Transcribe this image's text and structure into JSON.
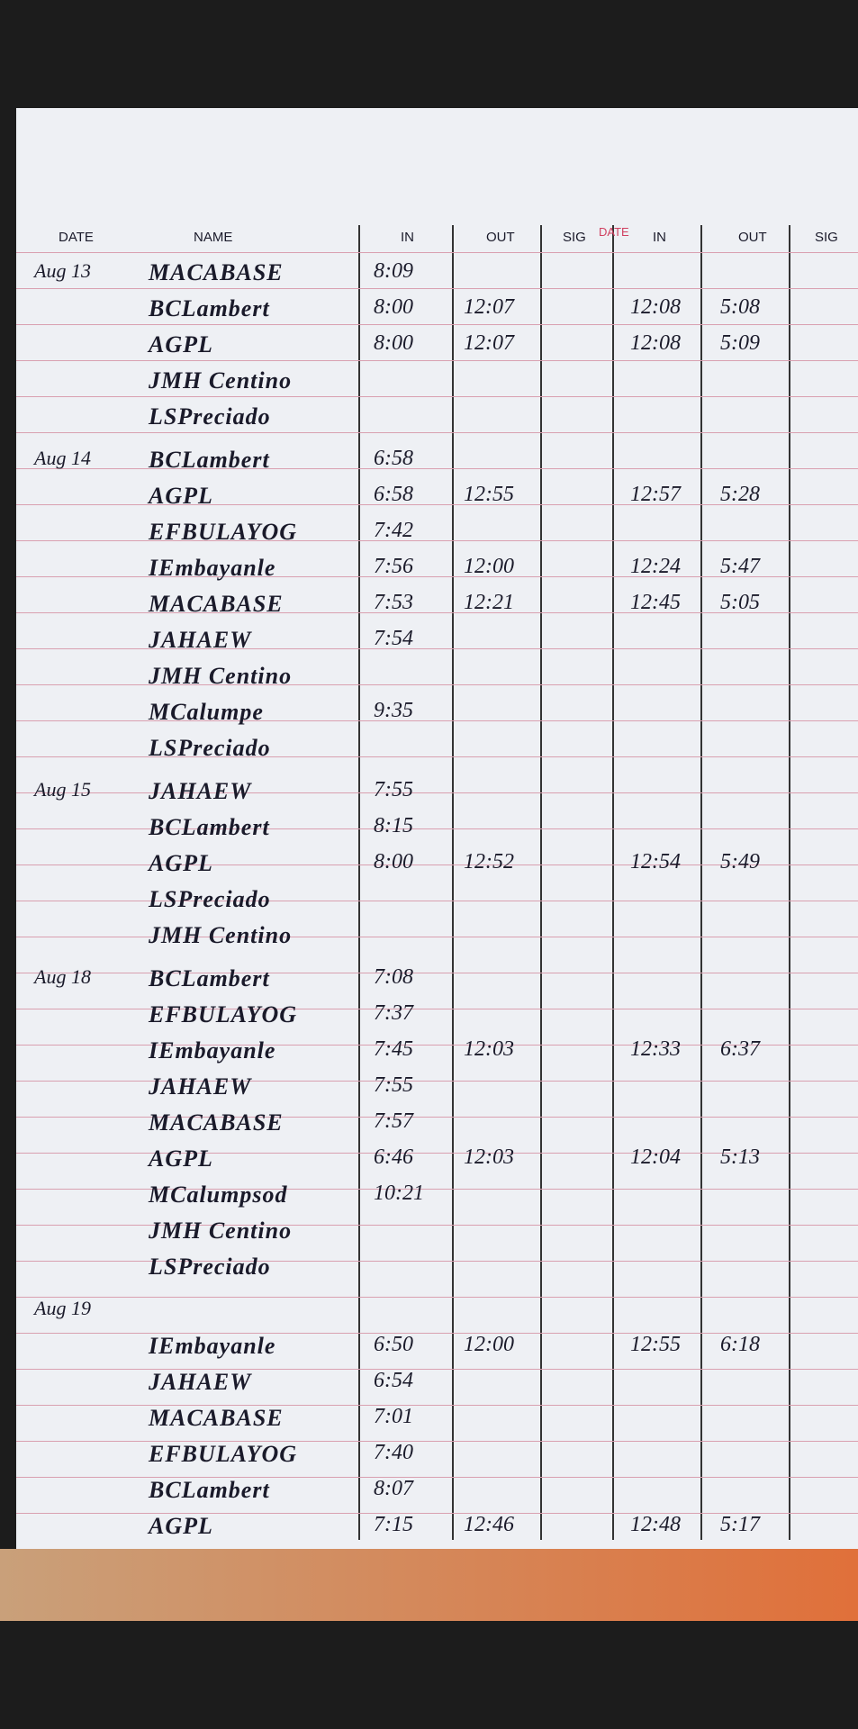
{
  "header": {
    "columns": [
      "DATE",
      "NAME",
      "IN",
      "OUT",
      "SIG",
      "IN",
      "OUT",
      "SIG"
    ],
    "printed_label": "DATE"
  },
  "groups": [
    {
      "date": "Aug 13",
      "rows": [
        {
          "name": "MACABASE",
          "in": "8:09"
        },
        {
          "name": "BCLambert",
          "in": "8:00",
          "out": "12:07",
          "in2": "12:08",
          "out2": "5:08"
        },
        {
          "name": "AGPL",
          "in": "8:00",
          "out": "12:07",
          "in2": "12:08",
          "out2": "5:09"
        },
        {
          "name": "JMH Centino"
        },
        {
          "name": "LSPreciado"
        }
      ]
    },
    {
      "date": "Aug 14",
      "rows": [
        {
          "name": "BCLambert",
          "in": "6:58"
        },
        {
          "name": "AGPL",
          "in": "6:58",
          "out": "12:55",
          "in2": "12:57",
          "out2": "5:28"
        },
        {
          "name": "EFBULAYOG",
          "in": "7:42"
        },
        {
          "name": "IEmbayanle",
          "in": "7:56",
          "out": "12:00",
          "in2": "12:24",
          "out2": "5:47"
        },
        {
          "name": "MACABASE",
          "in": "7:53",
          "out": "12:21",
          "in2": "12:45",
          "out2": "5:05"
        },
        {
          "name": "JAHAEW",
          "in": "7:54"
        },
        {
          "name": "JMH Centino"
        },
        {
          "name": "MCalumpe",
          "in": "9:35"
        },
        {
          "name": "LSPreciado"
        }
      ]
    },
    {
      "date": "Aug 15",
      "rows": [
        {
          "name": "JAHAEW",
          "in": "7:55"
        },
        {
          "name": "BCLambert",
          "in": "8:15"
        },
        {
          "name": "AGPL",
          "in": "8:00",
          "out": "12:52",
          "in2": "12:54",
          "out2": "5:49"
        },
        {
          "name": "LSPreciado"
        },
        {
          "name": "JMH Centino"
        }
      ]
    },
    {
      "date": "Aug 18",
      "rows": [
        {
          "name": "BCLambert",
          "in": "7:08"
        },
        {
          "name": "EFBULAYOG",
          "in": "7:37"
        },
        {
          "name": "IEmbayanle",
          "in": "7:45",
          "out": "12:03",
          "in2": "12:33",
          "out2": "6:37"
        },
        {
          "name": "JAHAEW",
          "in": "7:55"
        },
        {
          "name": "MACABASE",
          "in": "7:57"
        },
        {
          "name": "AGPL",
          "in": "6:46",
          "out": "12:03",
          "in2": "12:04",
          "out2": "5:13"
        },
        {
          "name": "MCalumpsod",
          "in": "10:21"
        },
        {
          "name": "JMH Centino"
        },
        {
          "name": "LSPreciado"
        }
      ]
    },
    {
      "date": "Aug 19",
      "rows": [
        {
          "name": "IEmbayanle",
          "in": "6:50",
          "out": "12:00",
          "in2": "12:55",
          "out2": "6:18"
        },
        {
          "name": "JAHAEW",
          "in": "6:54"
        },
        {
          "name": "MACABASE",
          "in": "7:01"
        },
        {
          "name": "EFBULAYOG",
          "in": "7:40"
        },
        {
          "name": "BCLambert",
          "in": "8:07"
        },
        {
          "name": "AGPL",
          "in": "7:15",
          "out": "12:46",
          "in2": "12:48",
          "out2": "5:17"
        }
      ]
    }
  ]
}
